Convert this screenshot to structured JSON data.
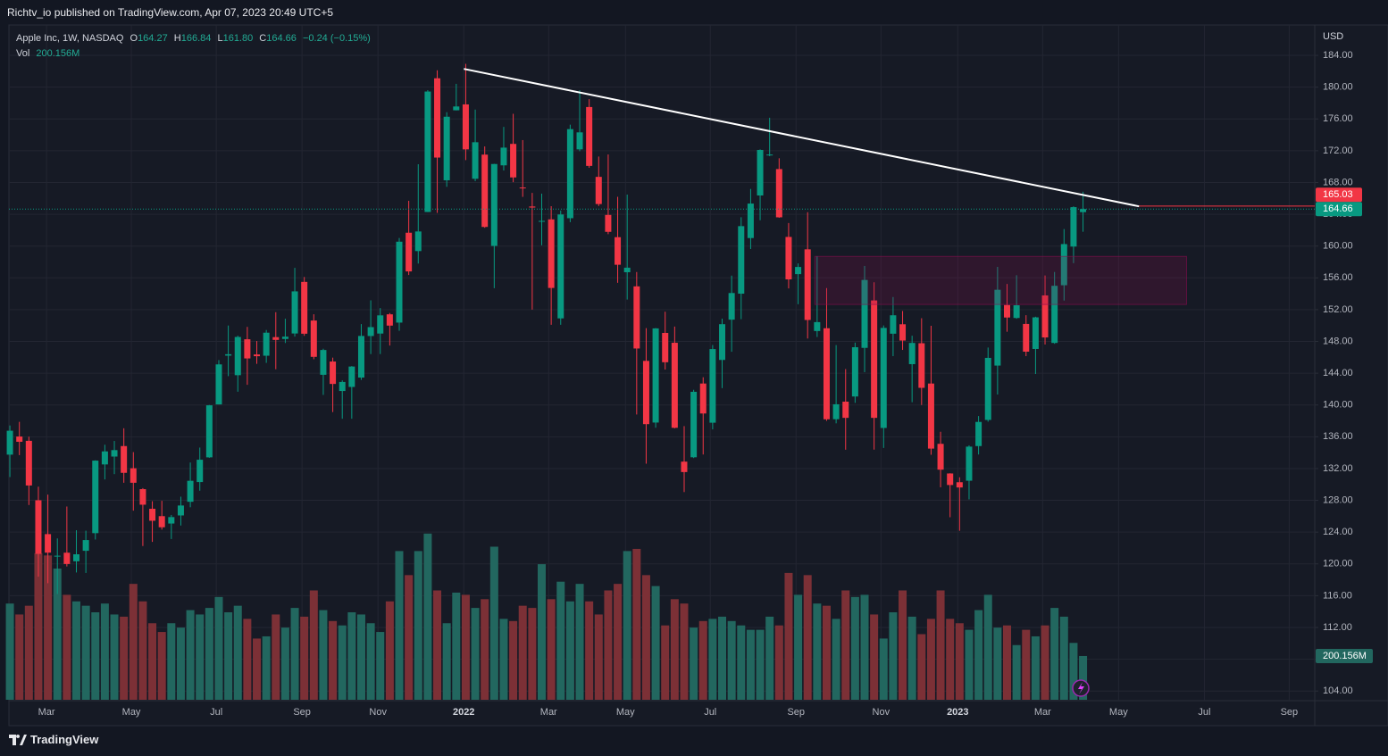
{
  "header": {
    "text": "Richtv_io published on TradingView.com, Apr 07, 2023 20:49 UTC+5"
  },
  "footer": {
    "brand": "TradingView"
  },
  "chart_data": {
    "type": "candlestick",
    "legend": {
      "title": "Apple Inc, 1W, NASDAQ",
      "o_label": "O",
      "open": "164.27",
      "h_label": "H",
      "high": "166.84",
      "l_label": "L",
      "low": "161.80",
      "c_label": "C",
      "close": "164.66",
      "change": "−0.24 (−0.15%)",
      "vol_label": "Vol",
      "vol": "200.156M"
    },
    "currency": "USD",
    "up_color": "#089981",
    "down_color": "#f23645",
    "volume_up_color": "#22675f",
    "volume_down_color": "#7c3036",
    "grid": true,
    "xlim": [
      -0.1,
      137.4
    ],
    "ylim": [
      102.9,
      187.6
    ],
    "xticks": [
      {
        "value": 3.86,
        "label": "Mar"
      },
      {
        "value": 12.79,
        "label": "May"
      },
      {
        "value": 21.73,
        "label": "Jul"
      },
      {
        "value": 30.76,
        "label": "Sep"
      },
      {
        "value": 38.76,
        "label": "Nov"
      },
      {
        "value": 47.79,
        "label": "2022"
      },
      {
        "value": 56.73,
        "label": "Mar"
      },
      {
        "value": 64.82,
        "label": "May"
      },
      {
        "value": 73.75,
        "label": "Jul"
      },
      {
        "value": 82.78,
        "label": "Sep"
      },
      {
        "value": 91.72,
        "label": "Nov"
      },
      {
        "value": 99.81,
        "label": "2023"
      },
      {
        "value": 108.75,
        "label": "Mar"
      },
      {
        "value": 116.74,
        "label": "May"
      },
      {
        "value": 125.78,
        "label": "Jul"
      },
      {
        "value": 134.71,
        "label": "Sep"
      }
    ],
    "yticks": [
      {
        "value": 104,
        "label": "104.00"
      },
      {
        "value": 108,
        "label": "108.00"
      },
      {
        "value": 112,
        "label": "112.00"
      },
      {
        "value": 116,
        "label": "116.00"
      },
      {
        "value": 120,
        "label": "120.00"
      },
      {
        "value": 124,
        "label": "124.00"
      },
      {
        "value": 128,
        "label": "128.00"
      },
      {
        "value": 132,
        "label": "132.00"
      },
      {
        "value": 136,
        "label": "136.00"
      },
      {
        "value": 140,
        "label": "140.00"
      },
      {
        "value": 144,
        "label": "144.00"
      },
      {
        "value": 148,
        "label": "148.00"
      },
      {
        "value": 152,
        "label": "152.00"
      },
      {
        "value": 156,
        "label": "156.00"
      },
      {
        "value": 160,
        "label": "160.00"
      },
      {
        "value": 164,
        "label": "164.00"
      },
      {
        "value": 168,
        "label": "168.00"
      },
      {
        "value": 172,
        "label": "172.00"
      },
      {
        "value": 176,
        "label": "176.00"
      },
      {
        "value": 180,
        "label": "180.00"
      },
      {
        "value": 184,
        "label": "184.00"
      }
    ],
    "candles": {
      "open": [
        133.75,
        136.03,
        135.49,
        128.01,
        123.75,
        120.93,
        121.41,
        120.33,
        121.65,
        123.87,
        132.52,
        133.51,
        134.83,
        132.04,
        129.41,
        126.94,
        126.01,
        125.08,
        126.1,
        127.82,
        130.3,
        133.41,
        140.07,
        146.21,
        143.75,
        148.27,
        146.36,
        146.2,
        148.54,
        148.31,
        149.0,
        155.49,
        150.63,
        143.8,
        145.47,
        141.76,
        142.27,
        143.45,
        148.68,
        148.99,
        151.41,
        150.37,
        161.68,
        159.37,
        164.29,
        181.12,
        168.28,
        177.09,
        177.83,
        168.47,
        171.51,
        160.02,
        170.16,
        172.86,
        167.37,
        164.98,
        163.06,
        163.36,
        150.9,
        163.51,
        172.17,
        177.5,
        168.71,
        163.92,
        161.12,
        156.71,
        154.93,
        145.55,
        137.79,
        149.07,
        147.83,
        132.87,
        133.42,
        142.7,
        137.77,
        145.67,
        150.74,
        154.01,
        161.01,
        166.37,
        171.52,
        169.69,
        161.15,
        156.47,
        159.59,
        149.31,
        149.66,
        138.21,
        140.42,
        141.07,
        147.19,
        153.16,
        137.11,
        148.97,
        150.16,
        145.14,
        147.77,
        142.7,
        135.11,
        131.38,
        130.28,
        130.47,
        134.83,
        138.12,
        144.96,
        152.58,
        150.95,
        150.2,
        147.05,
        153.79,
        147.81,
        155.07,
        159.94,
        164.27
      ],
      "high": [
        137.42,
        137.88,
        136.01,
        129.72,
        128.72,
        123.21,
        127.22,
        124.24,
        124.18,
        133.04,
        135.0,
        135.47,
        137.07,
        134.07,
        129.54,
        127.89,
        127.94,
        126.16,
        128.46,
        132.76,
        134.64,
        140.0,
        145.65,
        150.0,
        148.72,
        149.83,
        148.05,
        149.44,
        151.68,
        150.86,
        157.26,
        156.11,
        151.42,
        147.08,
        145.96,
        143.1,
        144.9,
        150.18,
        153.17,
        152.2,
        151.57,
        161.02,
        165.7,
        170.3,
        179.63,
        182.13,
        176.85,
        180.42,
        182.94,
        177.18,
        172.54,
        170.35,
        175.0,
        176.65,
        173.34,
        166.69,
        166.6,
        165.02,
        164.48,
        175.28,
        179.61,
        178.49,
        171.27,
        171.53,
        166.2,
        166.48,
        156.74,
        149.68,
        149.68,
        151.74,
        149.87,
        137.34,
        141.91,
        143.49,
        147.55,
        150.86,
        156.28,
        163.63,
        167.19,
        172.17,
        176.15,
        171.05,
        162.9,
        157.82,
        164.26,
        158.74,
        154.72,
        147.54,
        144.52,
        147.85,
        157.5,
        155.45,
        150.01,
        153.59,
        151.83,
        148.72,
        150.92,
        149.97,
        136.63,
        131.41,
        130.9,
        134.92,
        138.61,
        147.23,
        157.38,
        155.23,
        156.33,
        151.3,
        151.11,
        156.3,
        156.74,
        162.14,
        165.0,
        166.84
      ],
      "low": [
        130.93,
        133.69,
        127.41,
        118.39,
        117.57,
        116.21,
        119.68,
        118.92,
        118.86,
        123.07,
        130.63,
        131.3,
        130.21,
        126.7,
        122.25,
        122.77,
        124.32,
        123.13,
        124.83,
        127.13,
        129.21,
        133.35,
        140.07,
        143.63,
        141.67,
        142.54,
        145.18,
        145.3,
        144.5,
        147.8,
        148.61,
        148.7,
        145.76,
        141.27,
        139.11,
        138.27,
        138.27,
        143.16,
        146.41,
        146.41,
        147.48,
        149.34,
        156.36,
        157.8,
        164.28,
        164.18,
        167.46,
        177.07,
        170.82,
        168.17,
        162.3,
        154.7,
        169.51,
        168.04,
        166.19,
        152.0,
        160.1,
        150.1,
        150.1,
        163.01,
        171.94,
        169.85,
        165.04,
        161.5,
        155.38,
        153.27,
        138.8,
        132.61,
        137.14,
        144.46,
        137.06,
        129.04,
        133.32,
        133.77,
        136.93,
        142.12,
        146.7,
        150.8,
        159.63,
        163.25,
        171.31,
        163.56,
        154.67,
        152.68,
        148.37,
        148.56,
        138.0,
        137.69,
        134.37,
        140.27,
        144.13,
        134.38,
        134.59,
        146.15,
        146.93,
        140.35,
        140.0,
        133.73,
        129.64,
        125.87,
        124.17,
        128.12,
        133.77,
        137.9,
        141.32,
        149.22,
        150.85,
        146.15,
        143.9,
        147.61,
        147.7,
        153.14,
        157.85,
        161.8
      ],
      "close": [
        136.76,
        135.37,
        129.87,
        121.26,
        121.42,
        121.03,
        119.99,
        121.21,
        123.0,
        133.0,
        134.16,
        134.32,
        131.46,
        130.21,
        127.45,
        125.43,
        124.61,
        125.89,
        127.35,
        130.46,
        133.11,
        139.96,
        145.11,
        146.39,
        148.56,
        145.86,
        146.14,
        149.1,
        148.19,
        148.6,
        154.3,
        148.97,
        146.06,
        146.92,
        142.65,
        142.9,
        144.84,
        148.69,
        149.8,
        151.28,
        149.99,
        160.55,
        156.81,
        161.84,
        179.45,
        171.14,
        176.28,
        177.57,
        172.17,
        173.07,
        162.41,
        170.33,
        172.39,
        168.64,
        167.3,
        164.85,
        163.17,
        154.73,
        163.98,
        174.72,
        174.31,
        170.09,
        165.29,
        161.79,
        157.65,
        157.28,
        147.11,
        137.59,
        149.64,
        145.38,
        137.13,
        131.56,
        141.66,
        138.93,
        147.04,
        150.17,
        154.09,
        162.51,
        165.35,
        172.1,
        171.52,
        163.62,
        155.81,
        157.37,
        150.7,
        150.43,
        138.2,
        140.09,
        138.38,
        147.27,
        155.74,
        138.38,
        149.7,
        151.29,
        148.11,
        147.81,
        142.16,
        134.51,
        131.86,
        129.93,
        129.62,
        134.76,
        137.87,
        145.93,
        154.5,
        151.01,
        152.55,
        146.71,
        151.03,
        148.5,
        155.0,
        160.25,
        164.9,
        164.66
      ]
    },
    "volume": {
      "vlim": [
        0,
        800
      ],
      "values": [
        440,
        390,
        430,
        670,
        660,
        600,
        480,
        450,
        430,
        400,
        440,
        390,
        380,
        530,
        450,
        350,
        310,
        350,
        330,
        410,
        390,
        420,
        470,
        400,
        430,
        370,
        280,
        290,
        390,
        330,
        420,
        380,
        500,
        410,
        360,
        340,
        400,
        390,
        350,
        310,
        450,
        680,
        570,
        680,
        760,
        500,
        350,
        490,
        480,
        420,
        460,
        700,
        370,
        360,
        430,
        420,
        620,
        460,
        540,
        450,
        530,
        450,
        390,
        500,
        530,
        680,
        690,
        570,
        520,
        340,
        460,
        440,
        330,
        360,
        370,
        380,
        360,
        340,
        320,
        320,
        380,
        340,
        580,
        480,
        570,
        440,
        430,
        370,
        500,
        470,
        480,
        390,
        280,
        400,
        500,
        380,
        300,
        370,
        500,
        370,
        350,
        320,
        410,
        480,
        330,
        340,
        250,
        320,
        290,
        340,
        420,
        380,
        260,
        200.156
      ],
      "last_label": "200.156M"
    },
    "trendline": {
      "x": [
        47.8,
        118.9
      ],
      "y": [
        182.3,
        165.0
      ],
      "color": "#ffffff"
    },
    "zone": {
      "x": [
        84.76,
        123.9
      ],
      "y": [
        152.65,
        158.7
      ],
      "color": "#880e4f"
    },
    "hline": {
      "value": 165.03,
      "label": "165.03",
      "color": "#f23645"
    }
  }
}
